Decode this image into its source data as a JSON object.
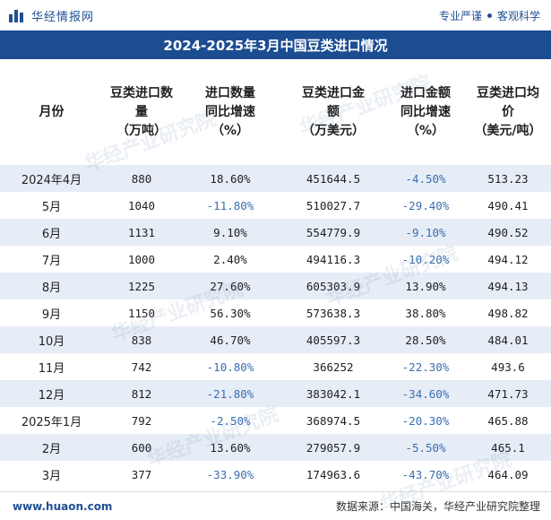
{
  "header": {
    "brand_name": "华经情报网",
    "slogan_left": "专业严谨",
    "slogan_right": "客观科学"
  },
  "title": "2024-2025年3月中国豆类进口情况",
  "columns": [
    {
      "lines": [
        "月份"
      ]
    },
    {
      "lines": [
        "豆类进口数",
        "量",
        "（万吨）"
      ]
    },
    {
      "lines": [
        "进口数量",
        "同比增速",
        "（%）"
      ]
    },
    {
      "lines": [
        "豆类进口金",
        "额",
        "（万美元）"
      ]
    },
    {
      "lines": [
        "进口金额",
        "同比增速",
        "（%）"
      ]
    },
    {
      "lines": [
        "豆类进口均",
        "价",
        "（美元/吨）"
      ]
    }
  ],
  "rows": [
    {
      "month": "2024年4月",
      "qty": "880",
      "qty_yoy": "18.60%",
      "amount": "451644.5",
      "amount_yoy": "-4.50%",
      "price": "513.23"
    },
    {
      "month": "5月",
      "qty": "1040",
      "qty_yoy": "-11.80%",
      "amount": "510027.7",
      "amount_yoy": "-29.40%",
      "price": "490.41"
    },
    {
      "month": "6月",
      "qty": "1131",
      "qty_yoy": "9.10%",
      "amount": "554779.9",
      "amount_yoy": "-9.10%",
      "price": "490.52"
    },
    {
      "month": "7月",
      "qty": "1000",
      "qty_yoy": "2.40%",
      "amount": "494116.3",
      "amount_yoy": "-10.20%",
      "price": "494.12"
    },
    {
      "month": "8月",
      "qty": "1225",
      "qty_yoy": "27.60%",
      "amount": "605303.9",
      "amount_yoy": "13.90%",
      "price": "494.13"
    },
    {
      "month": "9月",
      "qty": "1150",
      "qty_yoy": "56.30%",
      "amount": "573638.3",
      "amount_yoy": "38.80%",
      "price": "498.82"
    },
    {
      "month": "10月",
      "qty": "838",
      "qty_yoy": "46.70%",
      "amount": "405597.3",
      "amount_yoy": "28.50%",
      "price": "484.01"
    },
    {
      "month": "11月",
      "qty": "742",
      "qty_yoy": "-10.80%",
      "amount": "366252",
      "amount_yoy": "-22.30%",
      "price": "493.6"
    },
    {
      "month": "12月",
      "qty": "812",
      "qty_yoy": "-21.80%",
      "amount": "383042.1",
      "amount_yoy": "-34.60%",
      "price": "471.73"
    },
    {
      "month": "2025年1月",
      "qty": "792",
      "qty_yoy": "-2.50%",
      "amount": "368974.5",
      "amount_yoy": "-20.30%",
      "price": "465.88"
    },
    {
      "month": "2月",
      "qty": "600",
      "qty_yoy": "13.60%",
      "amount": "279057.9",
      "amount_yoy": "-5.50%",
      "price": "465.1"
    },
    {
      "month": "3月",
      "qty": "377",
      "qty_yoy": "-33.90%",
      "amount": "174963.6",
      "amount_yoy": "-43.70%",
      "price": "464.09"
    }
  ],
  "footer": {
    "site": "www.huaon.com",
    "source": "数据来源：中国海关，华经产业研究院整理"
  },
  "watermark": "华经产业研究院",
  "colors": {
    "title_bg": "#1c4d91",
    "stripe": "#e6edf6",
    "negative": "#3a6fb0",
    "brand": "#1f4f93"
  }
}
